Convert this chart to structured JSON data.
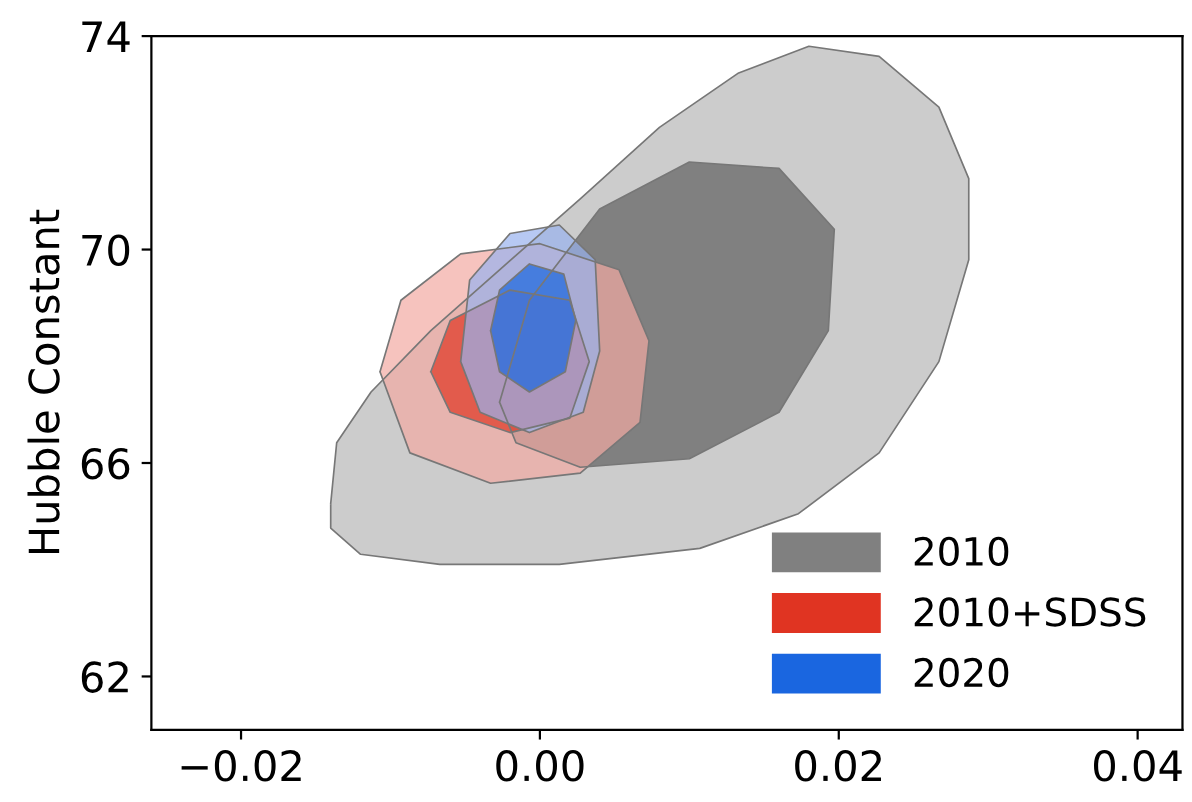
{
  "chart_data": {
    "type": "area",
    "ylabel": "Hubble Constant",
    "xlim": [
      -0.026,
      0.043
    ],
    "ylim": [
      61.0,
      74.0
    ],
    "xticks": [
      {
        "value": -0.02,
        "label": "−0.02"
      },
      {
        "value": 0,
        "label": "0.00"
      },
      {
        "value": 0.02,
        "label": "0.02"
      },
      {
        "value": 0.04,
        "label": "0.04"
      }
    ],
    "yticks": [
      62,
      66,
      70,
      74
    ],
    "grid": false,
    "legend": "bottom right",
    "series": [
      {
        "color": "#cccccc",
        "x": [
          -0.014,
          -0.0136,
          -0.0113,
          -0.0073,
          -0.0027,
          0.0027,
          0.008,
          0.0133,
          0.018,
          0.0227,
          0.0267,
          0.0287,
          0.0287,
          0.0267,
          0.0227,
          0.0173,
          0.0107,
          0.0013,
          -0.0067,
          -0.012,
          -0.014
        ],
        "values": [
          65.24,
          66.38,
          67.33,
          68.48,
          69.62,
          70.95,
          72.29,
          73.31,
          73.81,
          73.62,
          72.67,
          71.33,
          69.81,
          67.9,
          66.19,
          65.05,
          64.4,
          64.1,
          64.1,
          64.29,
          64.78
        ]
      },
      {
        "name": "2010",
        "color": "#808080",
        "x": [
          -0.0027,
          -0.0007,
          0.004,
          0.01,
          0.016,
          0.0197,
          0.0193,
          0.016,
          0.01,
          0.0027,
          -0.0016
        ],
        "values": [
          67.14,
          69.05,
          70.76,
          71.64,
          71.52,
          70.38,
          68.48,
          66.95,
          66.08,
          65.92,
          66.38
        ]
      },
      {
        "color": "#f2aaa2",
        "x": [
          -0.0107,
          -0.0093,
          -0.0053,
          0,
          0.0053,
          0.0073,
          0.0067,
          0.0027,
          -0.0033,
          -0.0087
        ],
        "values": [
          67.71,
          69.05,
          69.92,
          70.11,
          69.62,
          68.29,
          66.76,
          65.81,
          65.62,
          66.19
        ]
      },
      {
        "name": "2010+SDSS",
        "color": "#e03422",
        "x": [
          -0.0073,
          -0.006,
          -0.002,
          0.002,
          0.0033,
          0.002,
          -0.002,
          -0.006
        ],
        "values": [
          67.71,
          68.67,
          69.24,
          69.05,
          67.9,
          66.84,
          66.57,
          66.95
        ]
      },
      {
        "color": "#98b2ee",
        "x": [
          -0.0053,
          -0.0047,
          -0.002,
          0.0013,
          0.0037,
          0.004,
          0.0029,
          -0.0007,
          -0.004
        ],
        "values": [
          67.9,
          69.43,
          70.3,
          70.46,
          69.81,
          68.1,
          66.95,
          66.57,
          66.95
        ]
      },
      {
        "name": "2020",
        "color": "#1a66e0",
        "x": [
          -0.0033,
          -0.0027,
          -0.0007,
          0.0016,
          0.0024,
          0.0017,
          -0.0007,
          -0.0027
        ],
        "values": [
          68.48,
          69.24,
          69.73,
          69.54,
          68.67,
          67.71,
          67.33,
          67.71
        ]
      }
    ]
  }
}
